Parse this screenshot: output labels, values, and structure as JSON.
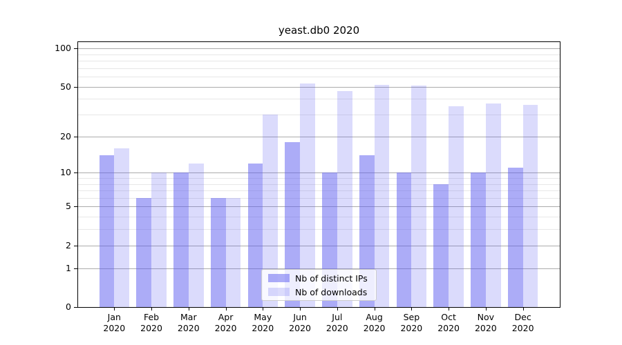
{
  "title": "yeast.db0 2020",
  "colors": {
    "bar_distinct_ips": "rgba(90,90,240,0.5)",
    "bar_downloads": "rgba(90,90,240,0.22)",
    "grid_major": "#ababab",
    "grid_minor": "#e7e7e7",
    "spine": "#000000",
    "text": "#000000",
    "legend_border": "#cccccc"
  },
  "axis": {
    "y_scale": "log(1+y)",
    "y_major_ticks": [
      0,
      1,
      2,
      5,
      10,
      20,
      50,
      100
    ],
    "y_minor_gridlines": [
      3,
      4,
      6,
      7,
      8,
      9,
      30,
      40,
      60,
      70,
      80,
      90
    ],
    "y_max": 112,
    "x_months": [
      "Jan",
      "Feb",
      "Mar",
      "Apr",
      "May",
      "Jun",
      "Jul",
      "Aug",
      "Sep",
      "Oct",
      "Nov",
      "Dec"
    ],
    "x_year": "2020"
  },
  "legend": {
    "items": [
      {
        "label": "Nb of distinct IPs",
        "color": "rgba(90,90,240,0.5)"
      },
      {
        "label": "Nb of downloads",
        "color": "rgba(90,90,240,0.22)"
      }
    ]
  },
  "chart_data": {
    "type": "bar",
    "title": "yeast.db0 2020",
    "categories": [
      "Jan 2020",
      "Feb 2020",
      "Mar 2020",
      "Apr 2020",
      "May 2020",
      "Jun 2020",
      "Jul 2020",
      "Aug 2020",
      "Sep 2020",
      "Oct 2020",
      "Nov 2020",
      "Dec 2020"
    ],
    "series": [
      {
        "name": "Nb of distinct IPs",
        "values": [
          14,
          6,
          10,
          6,
          12,
          18,
          10,
          14,
          10,
          8,
          10,
          11
        ]
      },
      {
        "name": "Nb of downloads",
        "values": [
          16,
          10,
          12,
          6,
          30,
          53,
          46,
          52,
          51,
          35,
          37,
          36
        ]
      }
    ],
    "xlabel": "",
    "ylabel": "",
    "yscale": "log1p",
    "yticks": [
      0,
      1,
      2,
      5,
      10,
      20,
      50,
      100
    ],
    "ylim": [
      0,
      112
    ],
    "grid": true,
    "legend_position": "lower center"
  }
}
